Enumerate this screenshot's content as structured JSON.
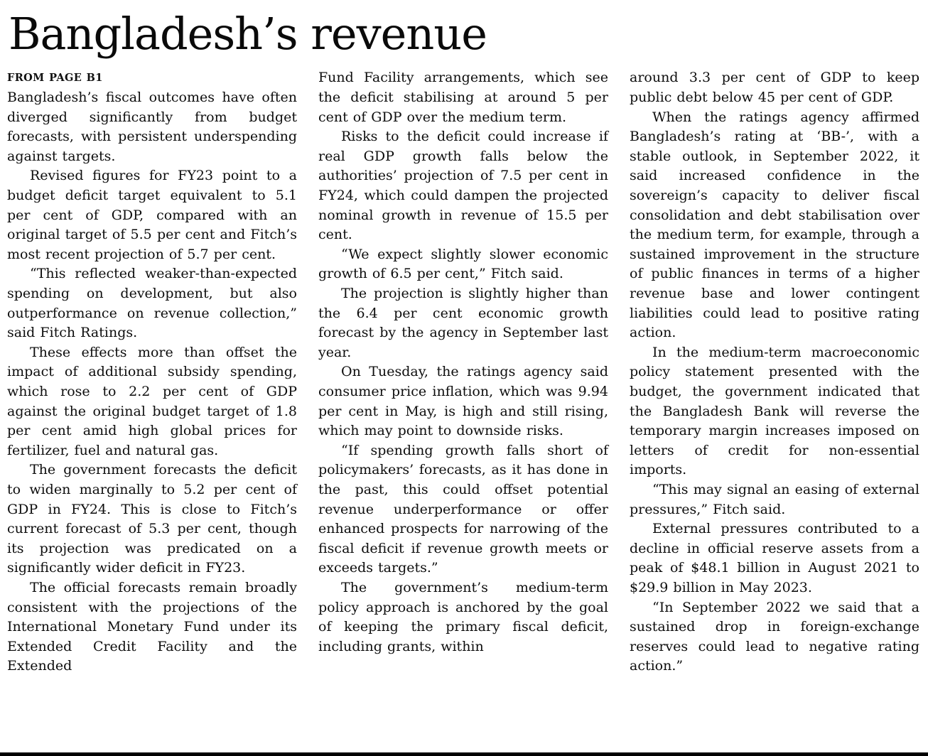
{
  "article": {
    "headline": "Bangladesh’s revenue",
    "kicker": "FROM PAGE B1",
    "columns": [
      [
        "Bangladesh’s fiscal outcomes have often diverged significantly from budget forecasts, with persistent underspending against targets.",
        "Revised figures for FY23 point to a budget deficit target equivalent to 5.1 per cent of GDP, compared with an original target of 5.5 per cent and Fitch’s most recent projection of 5.7 per cent.",
        "“This reflected weaker-than-expected spending on development, but also outperformance on revenue collection,” said Fitch Ratings.",
        "These effects more than offset the impact of additional subsidy spending, which rose to 2.2 per cent of GDP against the original budget target of 1.8 per cent amid high global prices for fertilizer, fuel and natural gas.",
        "The government forecasts the deficit to widen marginally to 5.2 per cent of GDP in FY24. This is close to Fitch’s current forecast of 5.3 per cent, though its projection was predicated on a significantly wider deficit in FY23.",
        "The official forecasts remain broadly consistent with the projections of the International Monetary Fund under its Extended Credit Facility and the Extended"
      ],
      [
        "Fund Facility arrangements, which see the deficit stabilising at around 5 per cent of GDP over the medium term.",
        "Risks to the deficit could increase if real GDP growth falls below the authorities’ projection of 7.5 per cent in FY24, which could dampen the projected nominal growth in revenue of 15.5 per cent.",
        "“We expect slightly slower economic growth of 6.5 per cent,” Fitch said.",
        "The projection is slightly higher than the 6.4 per cent economic growth forecast by the agency in September last year.",
        "On Tuesday, the ratings agency said consumer price inflation, which was 9.94 per cent in May, is high and still rising, which may point to downside risks.",
        "“If spending growth falls short of policymakers’ forecasts, as it has done in the past, this could offset potential revenue underperformance or offer enhanced prospects for narrowing of the fiscal deficit if revenue growth meets or exceeds targets.”",
        "The government’s medium-term policy approach is anchored by the goal of keeping the primary fiscal deficit, including grants, within"
      ],
      [
        "around 3.3 per cent of GDP to keep public debt below 45 per cent of GDP.",
        "When the ratings agency affirmed Bangladesh’s rating at ‘BB-’, with a stable outlook, in September 2022, it said increased confidence in the sovereign’s capacity to deliver fiscal consolidation and debt stabilisation over the medium term, for example, through a sustained improvement in the structure of public finances in terms of a higher revenue base and lower contingent liabilities could lead to positive rating action.",
        "In the medium-term macroeconomic policy statement presented with the budget, the government indicated that the Bangladesh Bank will reverse the temporary margin increases imposed on letters of credit for non-essential imports.",
        "“This may signal an easing of external pressures,” Fitch said.",
        "External pressures contributed to a decline in official reserve assets from a peak of $48.1 billion in August 2021 to $29.9 billion in May 2023.",
        "“In September 2022 we said that a sustained drop in foreign-exchange reserves could lead to negative rating action.”"
      ]
    ]
  }
}
